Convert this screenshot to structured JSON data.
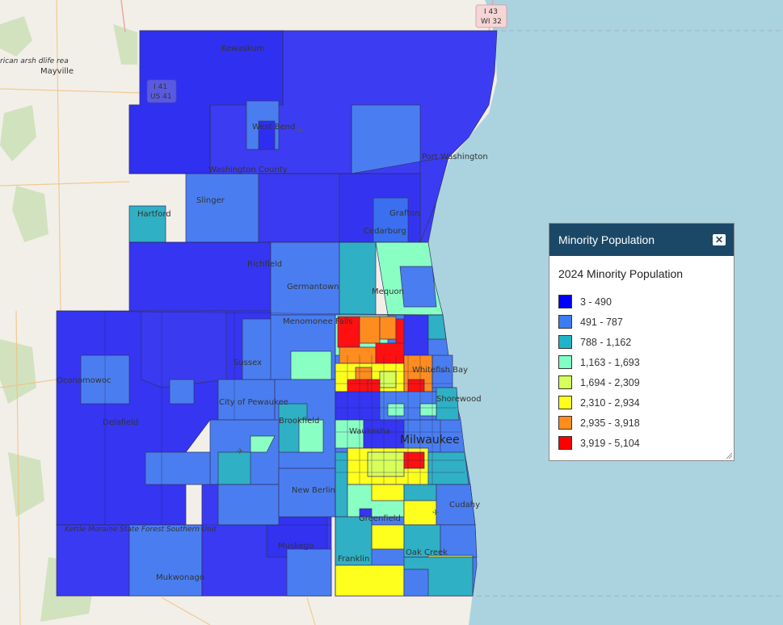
{
  "legend": {
    "title": "Minority Population",
    "close_icon": "close-icon",
    "subtitle": "2024 Minority Population",
    "items": [
      {
        "label": "3 - 490",
        "color": "#0000ff"
      },
      {
        "label": "491 - 787",
        "color": "#3b7df0"
      },
      {
        "label": "788 - 1,162",
        "color": "#20b4c8"
      },
      {
        "label": "1,163 - 1,693",
        "color": "#80ffc4"
      },
      {
        "label": "1,694 - 2,309",
        "color": "#d7ff5a"
      },
      {
        "label": "2,310 - 2,934",
        "color": "#ffff1e"
      },
      {
        "label": "2,935 - 3,918",
        "color": "#ff8c1e"
      },
      {
        "label": "3,919 - 5,104",
        "color": "#ff0000"
      }
    ]
  },
  "map": {
    "labels": {
      "mayville": "Mayville",
      "kewaskum": "Kewaskum",
      "west_bend": "West Bend",
      "washington_county": "Washington County",
      "port_washington": "Port Washington",
      "slinger": "Slinger",
      "hartford": "Hartford",
      "grafton": "Grafton",
      "cedarburg": "Cedarburg",
      "richfield": "Richfield",
      "germantown": "Germantown",
      "mequon": "Mequon",
      "menomonee_falls": "Menomonee Falls",
      "sussex": "Sussex",
      "whitefish_bay": "Whitefish Bay",
      "oconomowoc": "Oconomowoc",
      "city_of_pewaukee": "City of Pewaukee",
      "shorewood": "Shorewood",
      "delafield": "Delafield",
      "brookfield": "Brookfield",
      "milwaukee": "Milwaukee",
      "waukesha": "Waukesha",
      "new_berlin": "New Berlin",
      "greenfield": "Greenfield",
      "cudahy": "Cudahy",
      "kettle_moraine": "Kettle Moraine State Forest Southern Unit",
      "muskego": "Muskego",
      "franklin": "Franklin",
      "oak_creek": "Oak Creek",
      "mukwonago": "Mukwonago",
      "marsh_fragment": "rican arsh dlife rea"
    },
    "shields": {
      "i41": "I 41",
      "us41": "US 41",
      "i43": "I 43",
      "wi32": "WI 32"
    }
  }
}
